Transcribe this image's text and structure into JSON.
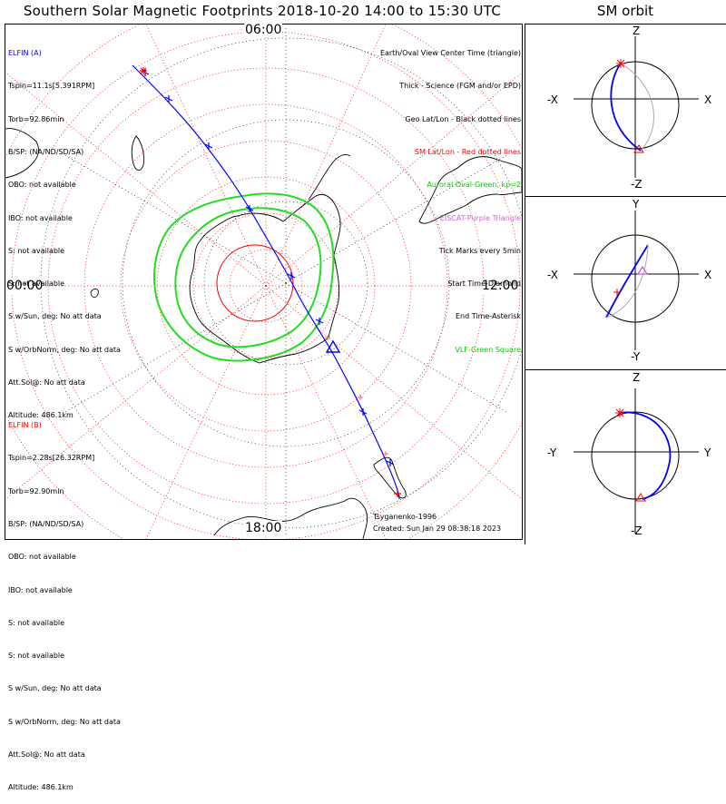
{
  "header": {
    "title": "Southern Solar Magnetic Footprints 2018-10-20 14:00 to 15:30 UTC",
    "orbit_title": "SM orbit"
  },
  "spacecraft_a": {
    "name": "ELFIN (A)",
    "color": "#0000ff",
    "lines": [
      "Tspin=11.1s[5.391RPM]",
      "Torb=92.86min",
      "B/SP: (NA/ND/SD/SA)",
      "OBO: not available",
      "IBO: not available",
      "S: not available",
      "S: not available",
      "S w/Sun, deg: No att data",
      "S w/OrbNorm, deg: No att data",
      "Att.Sol@: No att data",
      "Altitude: 486.1km"
    ]
  },
  "spacecraft_b": {
    "name": "ELFIN (B)",
    "color": "#ff0000",
    "lines": [
      "Tspin=2.28s[26.32RPM]",
      "Torb=92.90min",
      "B/SP: (NA/ND/SD/SA)",
      "OBO: not available",
      "IBO: not available",
      "S: not available",
      "S: not available",
      "S w/Sun, deg: No att data",
      "S w/OrbNorm, deg: No att data",
      "Att.Sol@: No att data",
      "Altitude: 486.1km"
    ]
  },
  "legend": [
    {
      "text": "Earth/Oval View Center Time (triangle)",
      "color": "#000000"
    },
    {
      "text": "Thick - Science (FGM and/or EPD)",
      "color": "#000000"
    },
    {
      "text": "Geo Lat/Lon - Black dotted lines",
      "color": "#000000"
    },
    {
      "text": "SM Lat/Lon - Red dotted lines",
      "color": "#ff0000"
    },
    {
      "text": "Auroral Oval-Green, kp=2",
      "color": "#00cc00"
    },
    {
      "text": "EISCAT-Purple Triangle",
      "color": "#cc66cc"
    },
    {
      "text": "Tick Marks every 5min",
      "color": "#000000"
    },
    {
      "text": "Start Time-Diamond",
      "color": "#000000"
    },
    {
      "text": "End Time-Asterisk",
      "color": "#000000"
    },
    {
      "text": "VLF-Green Square",
      "color": "#00cc00"
    }
  ],
  "credits": {
    "model": "Tsyganenko-1996",
    "created": "Created: Sun Jan 29 08:38:18 2023"
  },
  "map": {
    "mlt_labels": {
      "top": "06:00",
      "left": "00:00",
      "right": "12:00",
      "bottom": "18:00"
    }
  },
  "orbit_panels": [
    {
      "top": "Z",
      "bottom": "-Z",
      "left": "-X",
      "right": "X"
    },
    {
      "top": "Y",
      "bottom": "-Y",
      "left": "-X",
      "right": "X"
    },
    {
      "top": "Z",
      "bottom": "-Z",
      "left": "-Y",
      "right": "Y"
    }
  ],
  "colors": {
    "track": "#0000ff",
    "oval": "#22dd22",
    "sm_grid": "#ff0000",
    "geo_grid": "#000000",
    "eiscat": "#cc66cc"
  }
}
